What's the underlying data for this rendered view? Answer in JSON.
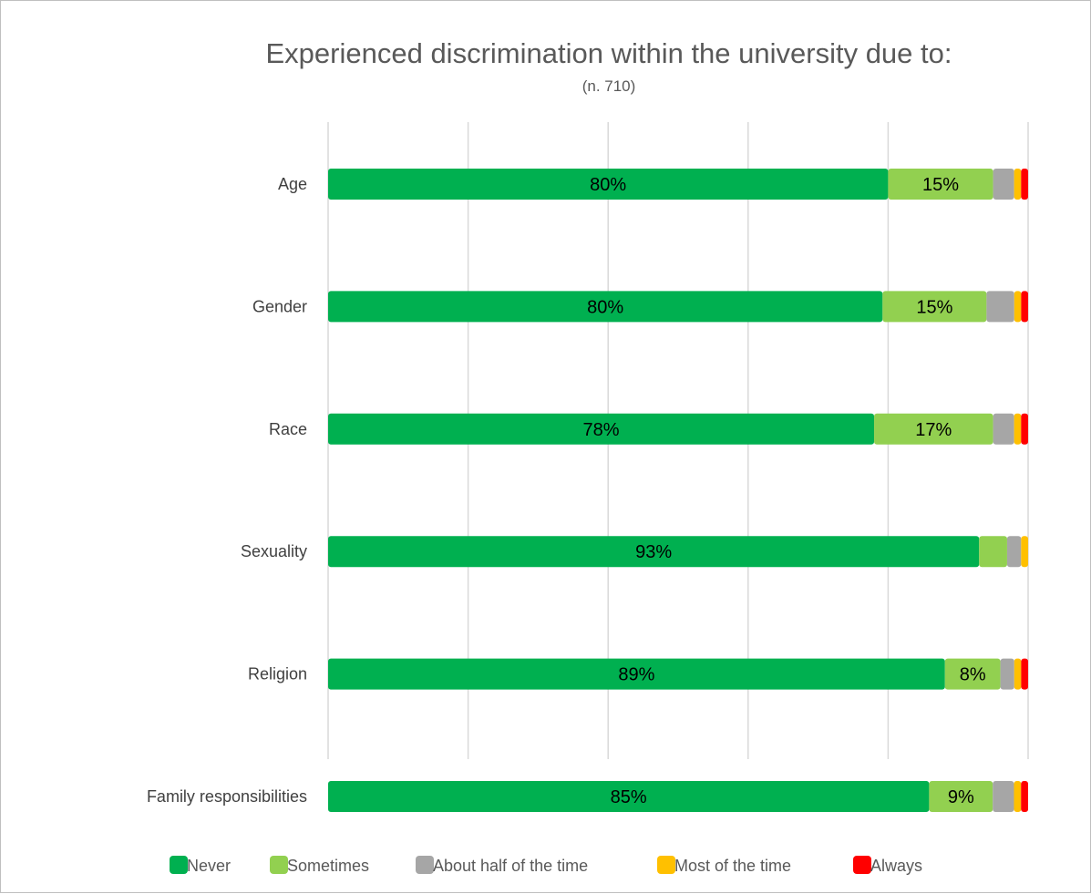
{
  "chart_data": {
    "type": "bar",
    "orientation": "horizontal",
    "stacked": "100%",
    "title": "Experienced discrimination within the university due to:",
    "subtitle": "(n. 710)",
    "categories": [
      "Age",
      "Gender",
      "Race",
      "Sexuality",
      "Religion",
      "Family responsibilities"
    ],
    "series": [
      {
        "name": "Never",
        "color": "#00b050",
        "values": [
          80,
          80,
          78,
          93,
          89,
          85
        ],
        "labels": [
          "80%",
          "80%",
          "78%",
          "93%",
          "89%",
          "85%"
        ]
      },
      {
        "name": "Sometimes",
        "color": "#92d050",
        "values": [
          15,
          15,
          17,
          4,
          8,
          9
        ],
        "labels": [
          "15%",
          "15%",
          "17%",
          "",
          "8%",
          "9%"
        ]
      },
      {
        "name": "About half of the time",
        "color": "#a6a6a6",
        "values": [
          3,
          4,
          3,
          2,
          2,
          3
        ],
        "labels": [
          "",
          "",
          "",
          "",
          "",
          ""
        ]
      },
      {
        "name": "Most of the time",
        "color": "#ffc000",
        "values": [
          1,
          1,
          1,
          1,
          1,
          1
        ],
        "labels": [
          "",
          "",
          "",
          "",
          "",
          ""
        ]
      },
      {
        "name": "Always",
        "color": "#ff0000",
        "values": [
          1,
          1,
          1,
          0,
          1,
          1
        ],
        "labels": [
          "",
          "",
          "",
          "",
          "",
          ""
        ]
      }
    ],
    "xlim": [
      0,
      100
    ],
    "grid": true,
    "legend": "bottom"
  }
}
